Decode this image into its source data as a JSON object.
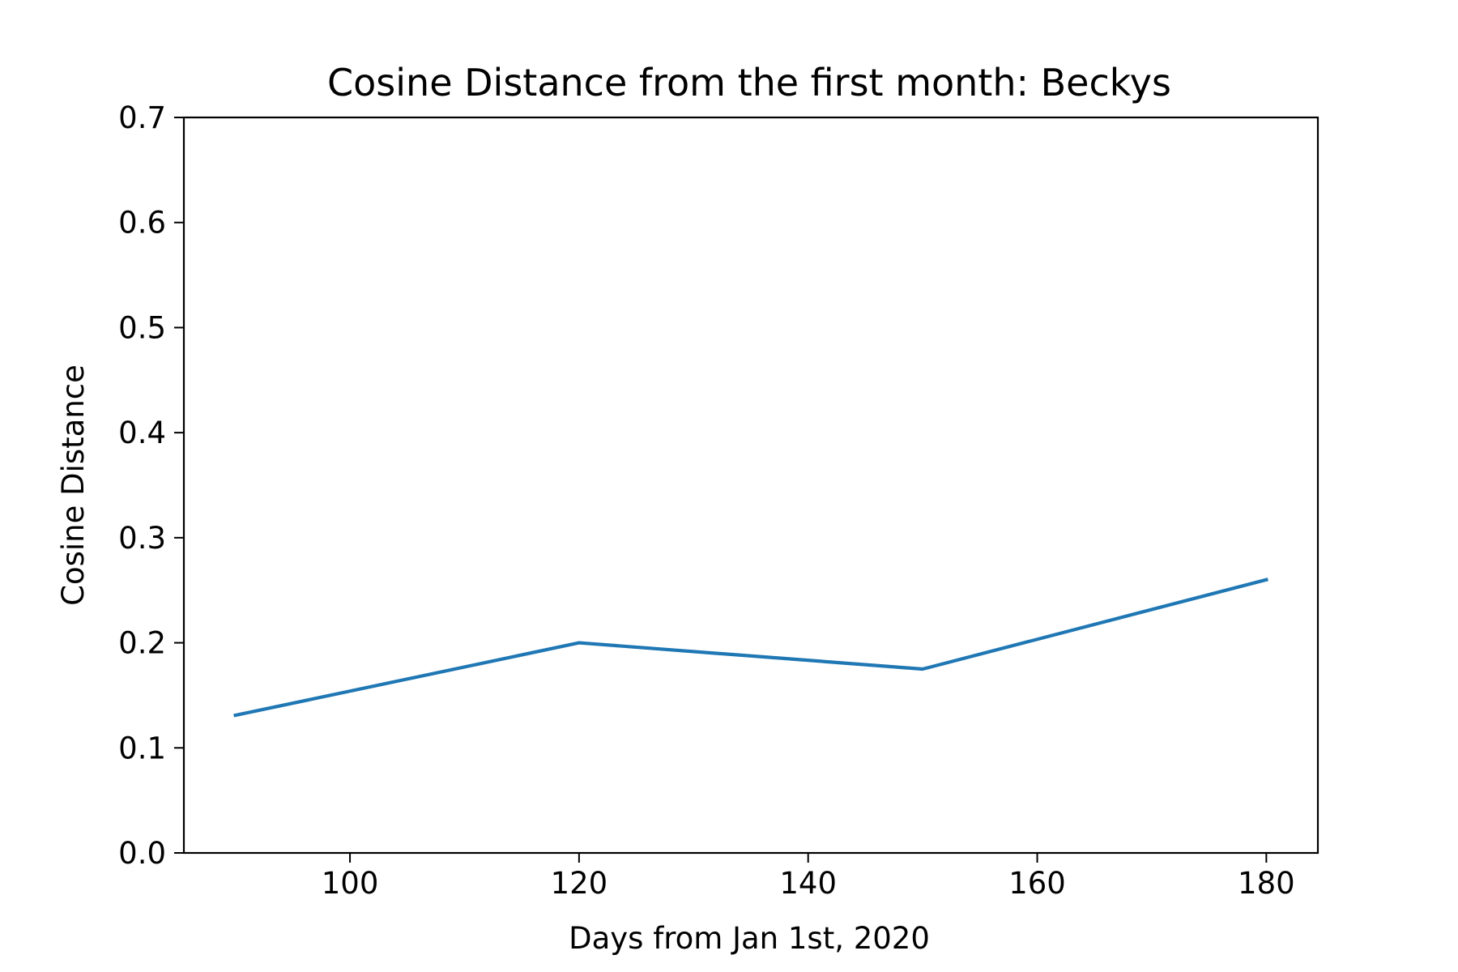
{
  "chart_data": {
    "type": "line",
    "title": "Cosine Distance from the first month: Beckys",
    "xlabel": "Days from Jan 1st, 2020",
    "ylabel": "Cosine Distance",
    "xlim": [
      85.5,
      184.5
    ],
    "ylim": [
      0,
      0.7
    ],
    "x_ticks": [
      100,
      120,
      140,
      160,
      180
    ],
    "x_tick_labels": [
      "100",
      "120",
      "140",
      "160",
      "180"
    ],
    "y_ticks": [
      0,
      0.1,
      0.2,
      0.3,
      0.4,
      0.5,
      0.6,
      0.7
    ],
    "y_tick_labels": [
      "0.0",
      "0.1",
      "0.2",
      "0.3",
      "0.4",
      "0.5",
      "0.6",
      "0.7"
    ],
    "grid": false,
    "series": [
      {
        "color": "#1f77b4",
        "x": [
          90,
          120,
          150,
          180
        ],
        "y": [
          0.131,
          0.2,
          0.175,
          0.26
        ]
      }
    ]
  }
}
